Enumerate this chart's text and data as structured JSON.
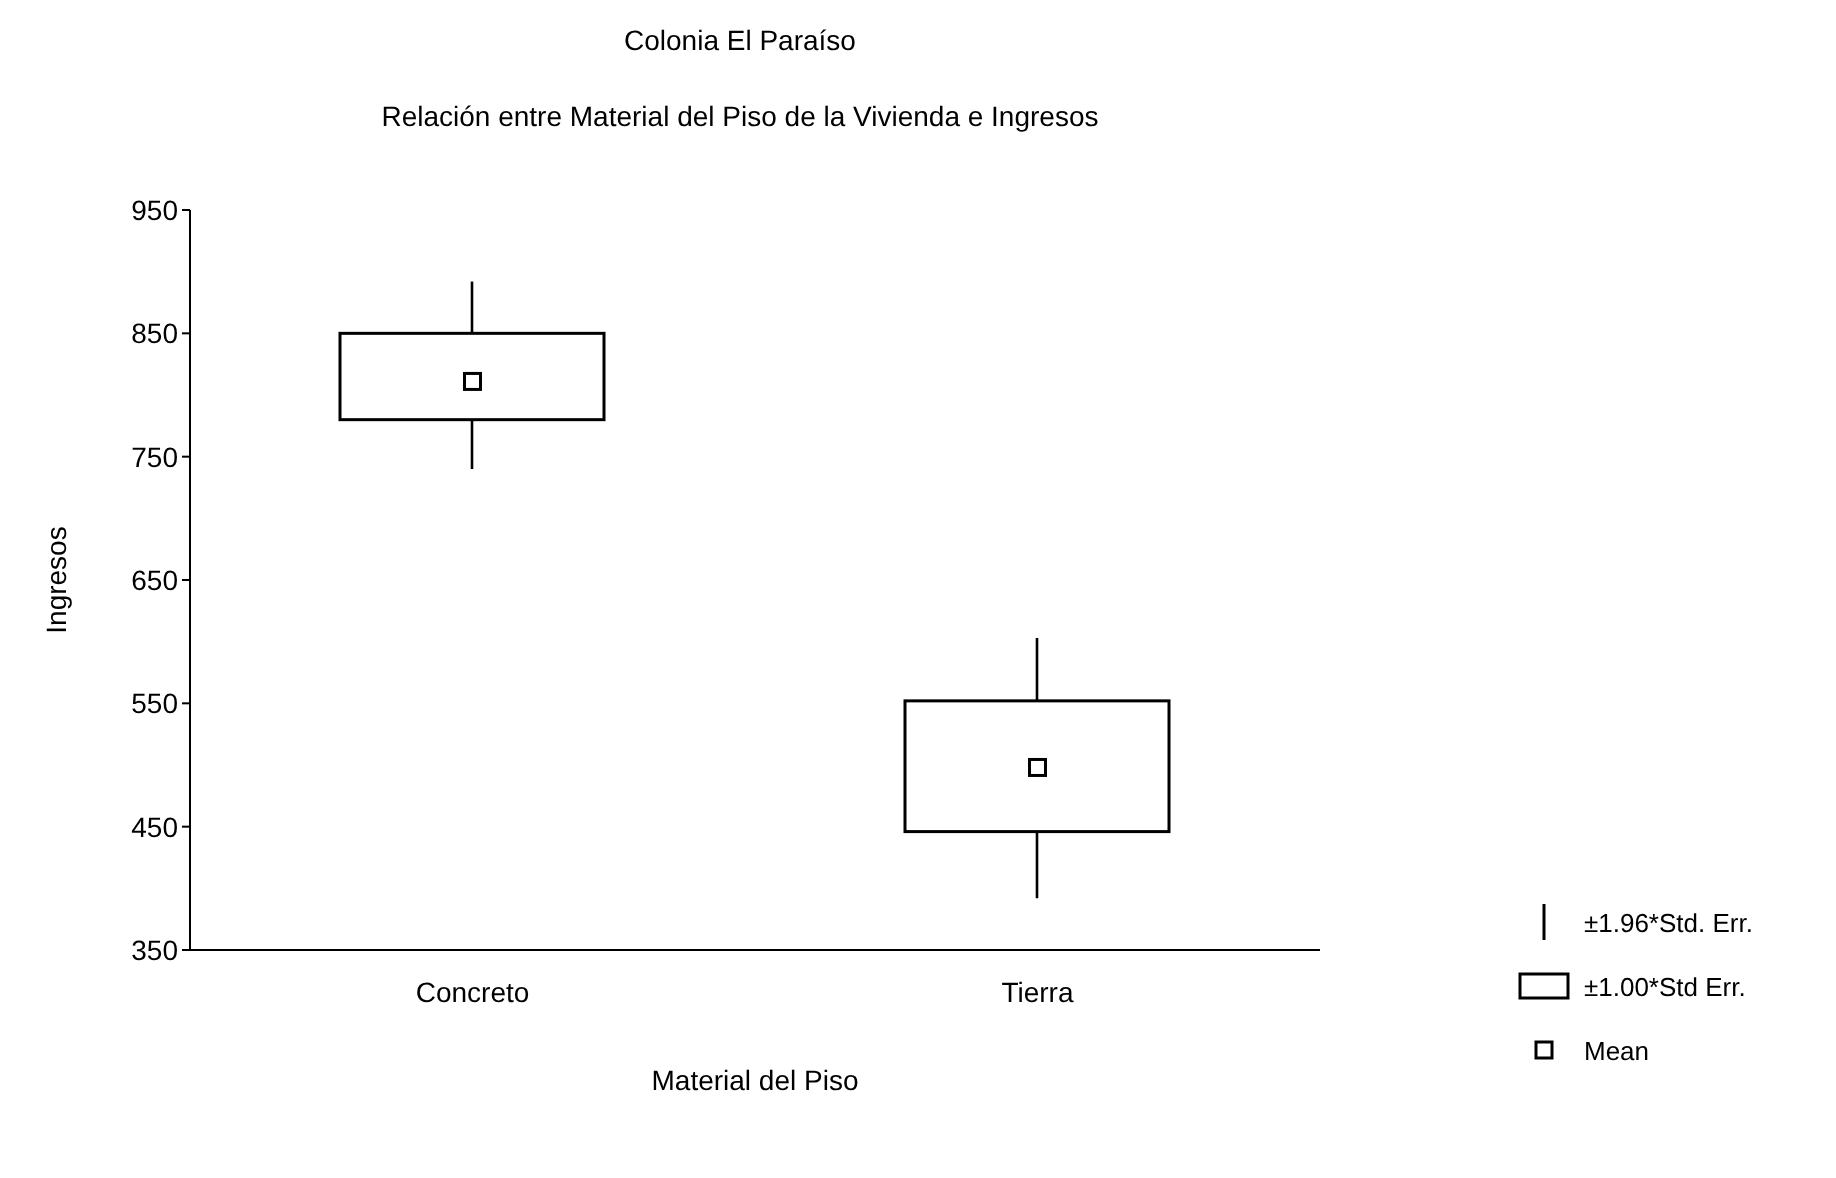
{
  "chart_data": {
    "type": "box",
    "title": "Colonia El Paraíso",
    "subtitle": "Relación entre Material del Piso de la Vivienda e Ingresos",
    "xlabel": "Material del Piso",
    "ylabel": "Ingresos",
    "categories": [
      "Concreto",
      "Tierra"
    ],
    "boxes": [
      {
        "low": 740,
        "q1": 780,
        "q3": 850,
        "high": 892,
        "mean": 811
      },
      {
        "low": 392,
        "q1": 446,
        "q3": 552,
        "high": 603,
        "mean": 498
      }
    ],
    "ylim": [
      350,
      950
    ],
    "yticks": [
      350,
      450,
      550,
      650,
      750,
      850,
      950
    ],
    "grid": false,
    "marker": "square",
    "annotations": [
      "±1.96*Std. Err.",
      "±1.00*Std  Err.",
      "Mean"
    ]
  }
}
